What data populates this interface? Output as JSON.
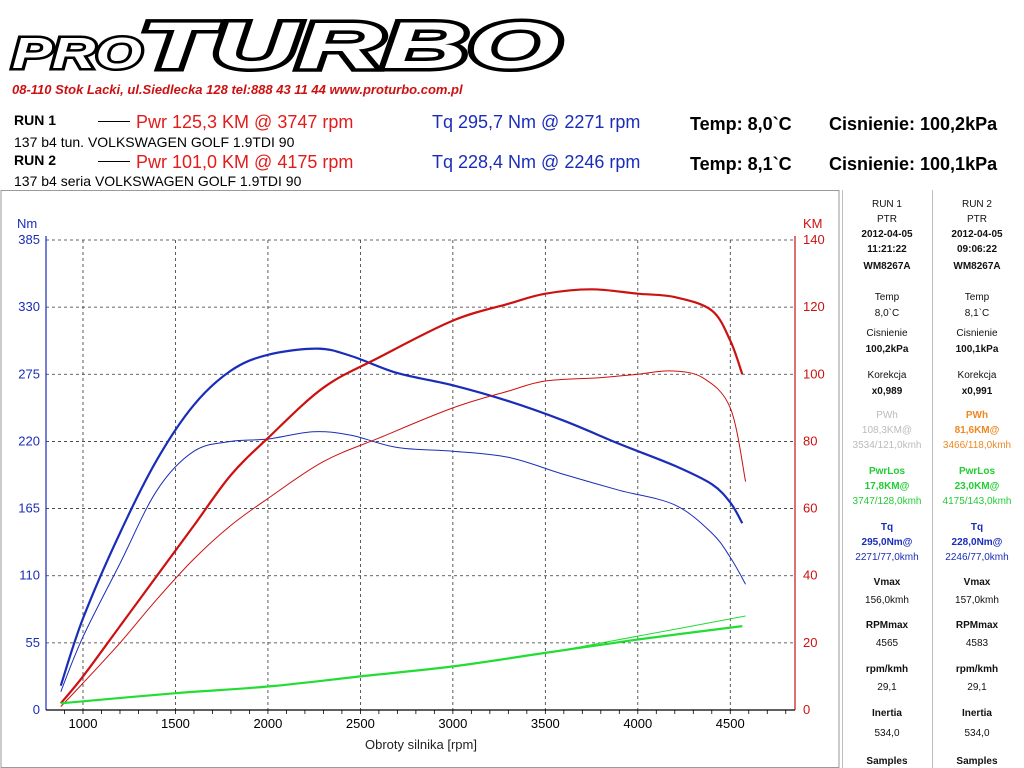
{
  "brand": {
    "logo_pro": "PRO",
    "logo_turbo": "TURBO",
    "address": "08-110 Stok Lacki,   ul.Siedlecka 128   tel:888 43 11 44    www.proturbo.com.pl"
  },
  "runs": [
    {
      "label": "RUN 1",
      "car": "137 b4 tun. VOLKSWAGEN GOLF 1.9TDI 90",
      "pwr": "Pwr  125,3 KM @ 3747 rpm",
      "tq": "Tq 295,7 Nm @ 2271 rpm",
      "temp": "Temp: 8,0`C",
      "pressure": "Cisnienie: 100,2kPa"
    },
    {
      "label": "RUN 2",
      "car": "137 b4 seria VOLKSWAGEN GOLF 1.9TDI 90",
      "pwr": "Pwr  101,0 KM @ 4175 rpm",
      "tq": "Tq 228,4 Nm @ 2246 rpm",
      "temp": "Temp: 8,1`C",
      "pressure": "Cisnienie: 100,1kPa"
    }
  ],
  "panel": [
    {
      "title": "RUN 1",
      "ptr": "PTR",
      "date": "2012-04-05",
      "time": "11:21:22",
      "id": "WM8267A",
      "temp_label": "Temp",
      "temp": "8,0`C",
      "pres_label": "Cisnienie",
      "pres": "100,2kPa",
      "corr_label": "Korekcja",
      "corr": "x0,989",
      "pwh_label": "PWh",
      "pwh_value": "108,3KM@",
      "pwh_detail": "3534/121,0kmh",
      "pwrlos_label": "PwrLos",
      "pwrlos_value": "17,8KM@",
      "pwrlos_detail": "3747/128,0kmh",
      "tq_label": "Tq",
      "tq_value": "295,0Nm@",
      "tq_detail": "2271/77,0kmh",
      "vmax_label": "Vmax",
      "vmax": "156,0kmh",
      "rpmmax_label": "RPMmax",
      "rpmmax": "4565",
      "rpmkmh_label": "rpm/kmh",
      "rpmkmh": "29,1",
      "inertia_label": "Inertia",
      "inertia": "534,0",
      "samples_label": "Samples"
    },
    {
      "title": "RUN 2",
      "ptr": "PTR",
      "date": "2012-04-05",
      "time": "09:06:22",
      "id": "WM8267A",
      "temp_label": "Temp",
      "temp": "8,1`C",
      "pres_label": "Cisnienie",
      "pres": "100,1kPa",
      "corr_label": "Korekcja",
      "corr": "x0,991",
      "pwh_label": "PWh",
      "pwh_value": "81,6KM@",
      "pwh_detail": "3466/118,0kmh",
      "pwrlos_label": "PwrLos",
      "pwrlos_value": "23,0KM@",
      "pwrlos_detail": "4175/143,0kmh",
      "tq_label": "Tq",
      "tq_value": "228,0Nm@",
      "tq_detail": "2246/77,0kmh",
      "vmax_label": "Vmax",
      "vmax": "157,0kmh",
      "rpmmax_label": "RPMmax",
      "rpmmax": "4583",
      "rpmkmh_label": "rpm/kmh",
      "rpmkmh": "29,1",
      "inertia_label": "Inertia",
      "inertia": "534,0",
      "samples_label": "Samples"
    }
  ],
  "colors": {
    "brand_red": "#cc1111",
    "power": "#dd1111",
    "torque": "#1a2db8",
    "losses": "#22dd33",
    "pwh_run1": "#bbbbbb",
    "pwh_run2": "#ee8822"
  },
  "chart_data": {
    "type": "line",
    "title": "",
    "xlabel": "Obroty silnika [rpm]",
    "ylabel_left": "Nm",
    "ylabel_right": "KM",
    "xlim": [
      800,
      4850
    ],
    "xticks": [
      1000,
      1500,
      2000,
      2500,
      3000,
      3500,
      4000,
      4500
    ],
    "ylim_left": [
      0,
      385
    ],
    "yticks_left": [
      0,
      55,
      110,
      165,
      220,
      275,
      330,
      385
    ],
    "ylim_right": [
      0,
      140
    ],
    "yticks_right": [
      0,
      20,
      40,
      60,
      80,
      100,
      120,
      140
    ],
    "grid": true,
    "series": [
      {
        "name": "",
        "axis": "left",
        "color": "#1a2db8",
        "width": 2.2,
        "x": [
          880,
          1000,
          1200,
          1400,
          1600,
          1800,
          2000,
          2271,
          2450,
          2700,
          3000,
          3300,
          3600,
          3900,
          4200,
          4400,
          4500,
          4565
        ],
        "y": [
          20,
          75,
          145,
          205,
          250,
          278,
          291,
          296,
          290,
          276,
          266,
          253,
          237,
          218,
          200,
          185,
          170,
          153
        ]
      },
      {
        "name": "",
        "axis": "left",
        "color": "#1a2db8",
        "width": 1,
        "x": [
          880,
          1000,
          1200,
          1400,
          1600,
          1800,
          2000,
          2246,
          2450,
          2700,
          3000,
          3300,
          3600,
          3900,
          4200,
          4400,
          4500,
          4583
        ],
        "y": [
          15,
          60,
          120,
          180,
          212,
          220,
          222,
          228,
          225,
          215,
          212,
          207,
          193,
          180,
          168,
          145,
          125,
          103
        ]
      },
      {
        "name": "",
        "axis": "right",
        "color": "#cc1111",
        "width": 2.2,
        "x": [
          880,
          1000,
          1200,
          1400,
          1600,
          1800,
          2000,
          2300,
          2600,
          3000,
          3300,
          3500,
          3747,
          4000,
          4200,
          4400,
          4500,
          4565
        ],
        "y": [
          2,
          10,
          25,
          40,
          55,
          70,
          81,
          96,
          105,
          116,
          121,
          124,
          125.3,
          124,
          123,
          119,
          110,
          100
        ]
      },
      {
        "name": "",
        "axis": "right",
        "color": "#cc1111",
        "width": 1,
        "x": [
          880,
          1000,
          1200,
          1400,
          1600,
          1800,
          2000,
          2300,
          2600,
          3000,
          3300,
          3500,
          3800,
          4000,
          4175,
          4350,
          4500,
          4583
        ],
        "y": [
          1,
          8,
          20,
          33,
          45,
          55,
          63,
          74,
          81,
          90,
          95,
          98,
          99,
          100,
          101,
          99,
          90,
          68
        ]
      },
      {
        "name": "",
        "axis": "right",
        "color": "#22dd33",
        "width": 2.2,
        "x": [
          880,
          1500,
          2000,
          2500,
          3000,
          3500,
          4000,
          4565
        ],
        "y": [
          2,
          5,
          7,
          10,
          13,
          17,
          21,
          25
        ]
      },
      {
        "name": "",
        "axis": "right",
        "color": "#22dd33",
        "width": 1,
        "x": [
          880,
          1500,
          2000,
          2500,
          3000,
          3500,
          4000,
          4583
        ],
        "y": [
          2,
          5,
          7,
          10,
          13,
          17,
          22,
          28
        ]
      }
    ]
  }
}
